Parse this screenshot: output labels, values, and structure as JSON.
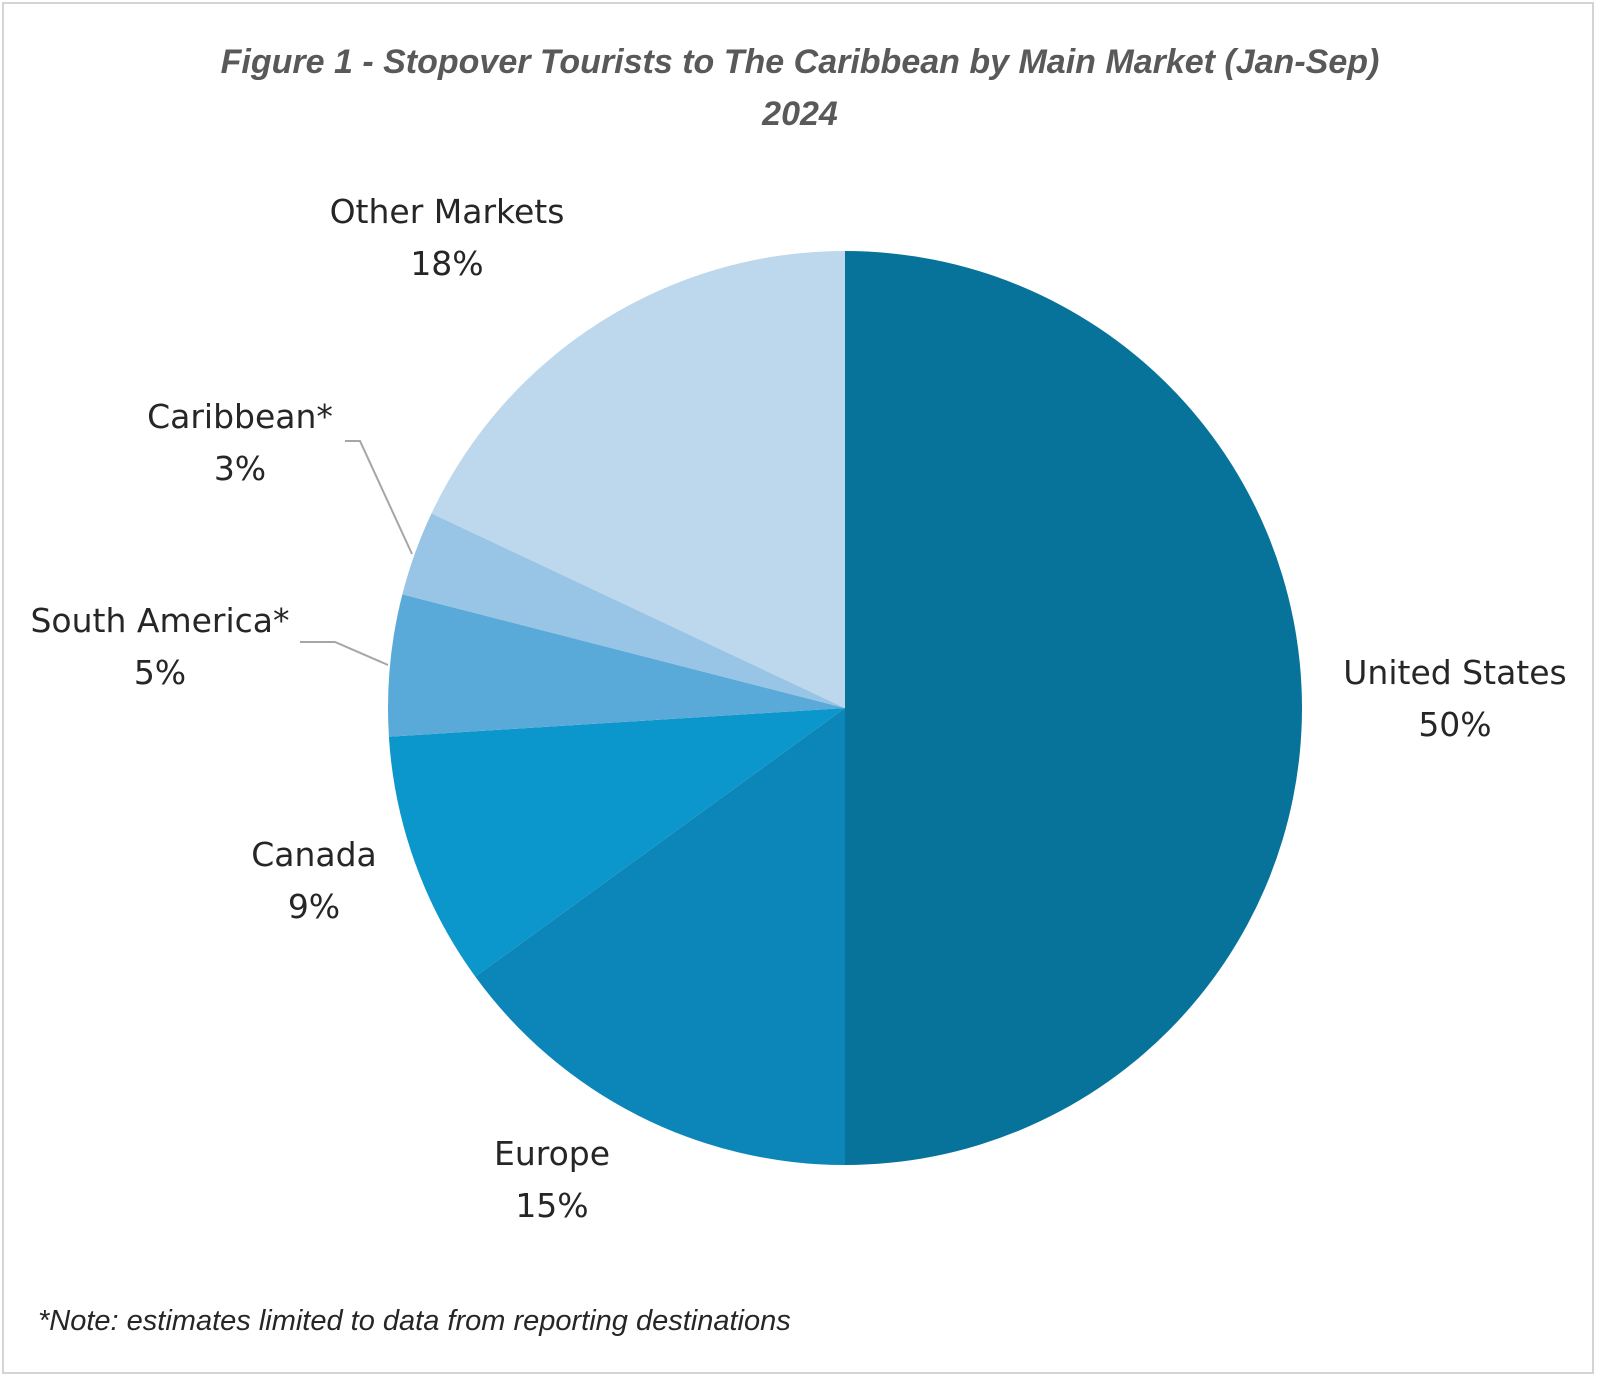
{
  "chart_data": {
    "type": "pie",
    "title_line1": "Figure 1 - Stopover Tourists to The Caribbean by Main Market (Jan-Sep)",
    "title_line2": "2024",
    "note": "*Note: estimates limited to data from reporting destinations",
    "slices": [
      {
        "label": "United States",
        "value": 50,
        "value_label": "50%",
        "color": "#07739b"
      },
      {
        "label": "Europe",
        "value": 15,
        "value_label": "15%",
        "color": "#0c86b8"
      },
      {
        "label": "Canada",
        "value": 9,
        "value_label": "9%",
        "color": "#0c97cc"
      },
      {
        "label": "South America*",
        "value": 5,
        "value_label": "5%",
        "color": "#5aaad9"
      },
      {
        "label": "Caribbean*",
        "value": 3,
        "value_label": "3%",
        "color": "#98c4e5"
      },
      {
        "label": "Other Markets",
        "value": 18,
        "value_label": "18%",
        "color": "#bdd7ec"
      }
    ]
  }
}
